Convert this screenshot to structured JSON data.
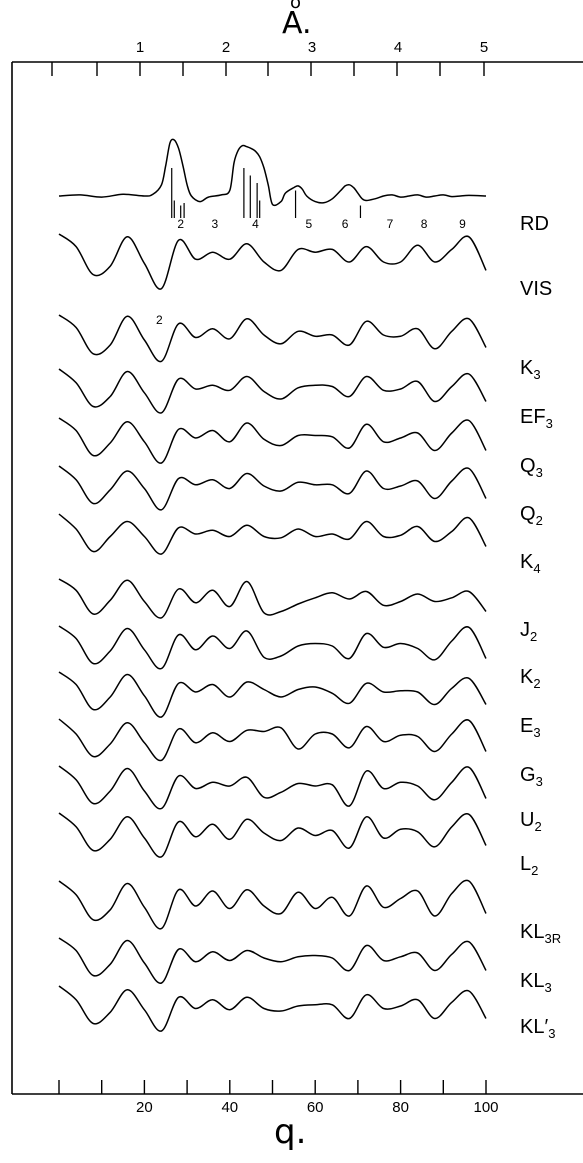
{
  "top_axis": {
    "unit_text": "Å.",
    "unit_ring": "o",
    "unit_letter": "A",
    "unit_dot": "."
  },
  "bottom_axis": {
    "unit_text": "q."
  },
  "chart_data": {
    "type": "line",
    "title": "",
    "xlabel": "q.",
    "x2label": "Å.",
    "xlim": [
      0,
      120
    ],
    "x_ticks": [
      20,
      40,
      60,
      80,
      100
    ],
    "x_minor_ticks": [
      10,
      30,
      50,
      70,
      90
    ],
    "top_ticks": [
      "1",
      "2",
      "3",
      "4",
      "5"
    ],
    "grid": false,
    "rd_sticks": [
      {
        "x": 26.4,
        "h": 1.0
      },
      {
        "x": 27.0,
        "h": 0.35
      },
      {
        "x": 28.5,
        "h": 0.25
      },
      {
        "x": 29.3,
        "h": 0.3
      },
      {
        "x": 43.3,
        "h": 1.0
      },
      {
        "x": 44.8,
        "h": 0.85
      },
      {
        "x": 46.4,
        "h": 0.7
      },
      {
        "x": 47.0,
        "h": 0.35
      },
      {
        "x": 55.4,
        "h": 0.55
      },
      {
        "x": 70.6,
        "h": 0.25
      }
    ],
    "vis_peak_labels": [
      {
        "x": 28.5,
        "label": "2",
        "pos": "above"
      },
      {
        "x": 36.5,
        "label": "3",
        "pos": "above"
      },
      {
        "x": 46.0,
        "label": "4",
        "pos": "above"
      },
      {
        "x": 58.5,
        "label": "5",
        "pos": "above"
      },
      {
        "x": 67.0,
        "label": "6",
        "pos": "above"
      },
      {
        "x": 77.5,
        "label": "7",
        "pos": "above"
      },
      {
        "x": 85.5,
        "label": "8",
        "pos": "above"
      },
      {
        "x": 94.5,
        "label": "9",
        "pos": "above"
      },
      {
        "x": 23.5,
        "label": "2",
        "pos": "below"
      }
    ],
    "series": [
      {
        "name": "RD",
        "sub": "",
        "kind": "rd",
        "x": [
          0,
          5,
          10,
          15,
          20,
          22,
          24,
          25,
          26,
          27,
          28,
          29,
          30,
          31,
          33,
          35,
          38,
          40,
          41,
          42,
          43,
          44,
          45,
          46,
          47,
          48,
          49,
          50,
          52,
          53,
          55,
          56,
          57,
          58,
          60,
          62,
          64,
          66,
          67,
          68,
          69,
          70,
          71,
          72,
          74,
          76,
          78,
          80,
          82,
          84,
          86,
          88,
          90,
          92,
          94,
          96,
          100
        ],
        "y": [
          0,
          0.02,
          -0.02,
          0.03,
          0,
          0.03,
          0.2,
          0.55,
          0.95,
          1.0,
          0.85,
          0.55,
          0.2,
          0,
          -0.1,
          -0.02,
          0.02,
          0.1,
          0.6,
          0.82,
          0.9,
          0.88,
          0.85,
          0.8,
          0.7,
          0.5,
          0.2,
          -0.15,
          -0.1,
          0.05,
          0.15,
          0.18,
          0.12,
          0,
          -0.1,
          -0.12,
          -0.05,
          0.1,
          0.18,
          0.2,
          0.15,
          0.05,
          -0.05,
          -0.08,
          -0.05,
          0,
          0.02,
          -0.02,
          0,
          0.02,
          -0.02,
          0,
          0.02,
          -0.01,
          0,
          0.01,
          0
        ]
      },
      {
        "name": "VIS",
        "sub": "",
        "kind": "curve",
        "y": [
          1.0,
          0.55,
          -0.45,
          -0.15,
          0.9,
          -0.05,
          -0.95,
          0.78,
          0.1,
          0.35,
          0.1,
          0.65,
          0.0,
          -0.3,
          0.45,
          0.35,
          0.45,
          0.0,
          0.55,
          0.0,
          0.0,
          0.6,
          0.0,
          0.45,
          0.9,
          -0.3
        ]
      },
      {
        "name": "K",
        "sub": "3",
        "kind": "curve",
        "y": [
          1.0,
          0.5,
          -0.55,
          -0.2,
          0.95,
          0.0,
          -0.85,
          0.65,
          0.1,
          0.45,
          0.05,
          0.85,
          0.2,
          -0.15,
          0.35,
          0.15,
          0.2,
          -0.2,
          0.75,
          0.2,
          0.15,
          0.45,
          -0.35,
          0.35,
          0.85,
          -0.3
        ]
      },
      {
        "name": "EF",
        "sub": "3",
        "kind": "curve",
        "y": [
          1.0,
          0.45,
          -0.5,
          -0.1,
          0.9,
          0.05,
          -0.75,
          0.6,
          0.2,
          0.35,
          0.15,
          0.7,
          0.1,
          -0.2,
          0.25,
          0.35,
          0.3,
          -0.1,
          0.7,
          0.15,
          0.2,
          0.5,
          -0.3,
          0.3,
          0.8,
          -0.3
        ]
      },
      {
        "name": "Q",
        "sub": "3",
        "kind": "curve",
        "y": [
          1.0,
          0.5,
          -0.5,
          0.0,
          0.85,
          0.05,
          -0.8,
          0.55,
          0.2,
          0.5,
          0.05,
          0.8,
          0.15,
          -0.1,
          0.3,
          0.3,
          0.25,
          -0.2,
          0.75,
          0.05,
          0.2,
          0.4,
          -0.3,
          0.4,
          0.9,
          -0.3
        ]
      },
      {
        "name": "Q",
        "sub": "2",
        "kind": "curve",
        "y": [
          1.0,
          0.45,
          -0.5,
          0.05,
          0.8,
          0.1,
          -0.75,
          0.5,
          0.25,
          0.45,
          0.1,
          0.7,
          0.2,
          0.0,
          0.35,
          0.25,
          0.25,
          -0.1,
          0.8,
          0.1,
          0.2,
          0.4,
          -0.3,
          0.4,
          0.9,
          -0.3
        ]
      },
      {
        "name": "K",
        "sub": "4",
        "kind": "curve",
        "y": [
          1.0,
          0.4,
          -0.5,
          0.1,
          0.7,
          0.1,
          -0.6,
          0.45,
          0.2,
          0.35,
          0.1,
          0.55,
          0.1,
          0.05,
          0.4,
          0.1,
          0.2,
          0.0,
          0.7,
          0.1,
          0.15,
          0.5,
          -0.1,
          0.3,
          0.85,
          -0.3
        ]
      },
      {
        "name": "J",
        "sub": "2",
        "kind": "curve",
        "y": [
          1.0,
          0.55,
          -0.4,
          0.15,
          0.95,
          0.1,
          -0.55,
          0.6,
          0.05,
          0.55,
          -0.1,
          0.9,
          -0.35,
          -0.3,
          0.0,
          0.25,
          0.45,
          0.2,
          0.5,
          -0.05,
          0.1,
          0.4,
          0.1,
          0.25,
          0.5,
          -0.3
        ]
      },
      {
        "name": "K",
        "sub": "2",
        "kind": "curve",
        "y": [
          1.0,
          0.5,
          -0.5,
          0.0,
          0.9,
          0.05,
          -0.7,
          0.65,
          0.05,
          0.6,
          0.1,
          0.8,
          -0.25,
          -0.2,
          0.2,
          0.3,
          0.2,
          -0.3,
          0.7,
          0.15,
          0.3,
          0.1,
          -0.35,
          0.4,
          0.95,
          -0.3
        ]
      },
      {
        "name": "E",
        "sub": "3",
        "kind": "curve",
        "y": [
          1.0,
          0.5,
          -0.5,
          0.0,
          0.9,
          0.05,
          -0.8,
          0.55,
          0.2,
          0.5,
          0.0,
          0.6,
          0.3,
          0.0,
          0.3,
          0.4,
          0.15,
          -0.25,
          0.55,
          0.2,
          0.25,
          0.2,
          -0.3,
          0.35,
          0.75,
          -0.3
        ]
      },
      {
        "name": "G",
        "sub": "3",
        "kind": "curve",
        "y": [
          1.0,
          0.4,
          -0.5,
          0.0,
          0.85,
          0.05,
          -0.65,
          0.6,
          0.05,
          0.45,
          0.1,
          0.55,
          0.5,
          0.65,
          -0.2,
          0.4,
          0.4,
          -0.15,
          0.7,
          0.1,
          0.35,
          0.3,
          -0.3,
          0.4,
          0.95,
          -0.3
        ]
      },
      {
        "name": "U",
        "sub": "2",
        "kind": "curve",
        "y": [
          1.0,
          0.45,
          -0.5,
          0.0,
          0.9,
          0.0,
          -0.7,
          0.6,
          0.1,
          0.35,
          0.2,
          0.55,
          -0.25,
          -0.05,
          0.3,
          0.2,
          0.25,
          -0.6,
          0.8,
          0.1,
          0.35,
          0.2,
          -0.35,
          0.35,
          0.95,
          -0.3
        ]
      },
      {
        "name": "L",
        "sub": "2",
        "kind": "curve",
        "y": [
          1.0,
          0.45,
          -0.5,
          -0.05,
          0.85,
          0.0,
          -0.75,
          0.65,
          0.05,
          0.55,
          -0.05,
          0.75,
          0.2,
          -0.1,
          0.4,
          0.1,
          0.3,
          -0.4,
          0.85,
          0.0,
          0.35,
          0.25,
          -0.35,
          0.45,
          0.95,
          -0.3
        ]
      },
      {
        "name": "KL",
        "sub": "3R",
        "kind": "curve",
        "y": [
          1.0,
          0.45,
          -0.55,
          -0.15,
          0.9,
          -0.05,
          -0.9,
          0.65,
          0.0,
          0.6,
          -0.1,
          0.65,
          0.0,
          -0.3,
          0.55,
          -0.1,
          0.35,
          -0.4,
          0.8,
          -0.05,
          0.3,
          0.6,
          -0.4,
          0.5,
          1.0,
          -0.3
        ]
      },
      {
        "name": "KL",
        "sub": "3",
        "kind": "curve",
        "y": [
          1.0,
          0.5,
          -0.5,
          -0.05,
          0.9,
          0.0,
          -0.8,
          0.55,
          0.05,
          0.45,
          0.1,
          0.5,
          0.2,
          0.05,
          0.25,
          0.3,
          0.2,
          -0.3,
          0.7,
          0.1,
          0.25,
          0.4,
          -0.3,
          0.35,
          0.85,
          -0.3
        ]
      },
      {
        "name": "KL′",
        "sub": "3",
        "kind": "curve",
        "y": [
          1.0,
          0.45,
          -0.5,
          -0.05,
          0.85,
          0.05,
          -0.8,
          0.55,
          0.1,
          0.45,
          0.05,
          0.55,
          0.1,
          0.0,
          0.2,
          0.25,
          0.25,
          -0.3,
          0.65,
          0.1,
          0.2,
          0.45,
          -0.3,
          0.35,
          0.8,
          -0.3
        ]
      }
    ]
  }
}
